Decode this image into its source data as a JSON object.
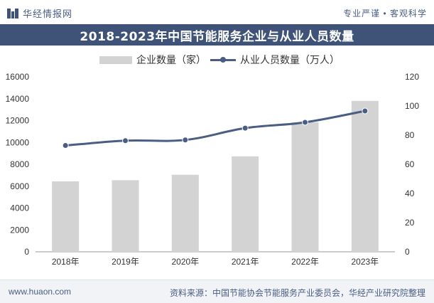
{
  "header": {
    "brand": "华经情报网",
    "slogan": "专业严谨 • 客观科学"
  },
  "title": "2018-2023年中国节能服务企业与从业人员数量",
  "legend": {
    "bar_label": "企业数量（家）",
    "line_label": "从业人员数量（万人）"
  },
  "footer": {
    "website": "www.huaon.com",
    "source": "资料来源：中国节能协会节能服务产业委员会，华经产业研究院整理"
  },
  "colors": {
    "bar": "#d3d3d3",
    "line": "#4a5d82",
    "title_bg": "#3f5378",
    "accent": "#4a5d82"
  },
  "chart_data": {
    "type": "bar+line",
    "title": "2018-2023年中国节能服务企业与从业人员数量",
    "categories": [
      "2018年",
      "2019年",
      "2020年",
      "2021年",
      "2022年",
      "2023年"
    ],
    "series": [
      {
        "name": "企业数量（家）",
        "type": "bar",
        "axis": "left",
        "values": [
          6439,
          6547,
          7046,
          8725,
          11835,
          13800
        ]
      },
      {
        "name": "从业人员数量（万人）",
        "type": "line",
        "axis": "right",
        "values": [
          72.9,
          76.2,
          76.7,
          84.8,
          88.8,
          96.6
        ]
      }
    ],
    "y_left": {
      "min": 0,
      "max": 16000,
      "ticks": [
        0,
        2000,
        4000,
        6000,
        8000,
        10000,
        12000,
        14000,
        16000
      ]
    },
    "y_right": {
      "min": 0,
      "max": 120,
      "ticks": [
        0,
        20,
        40,
        60,
        80,
        100,
        120
      ]
    },
    "grid": false,
    "legend_position": "top"
  }
}
